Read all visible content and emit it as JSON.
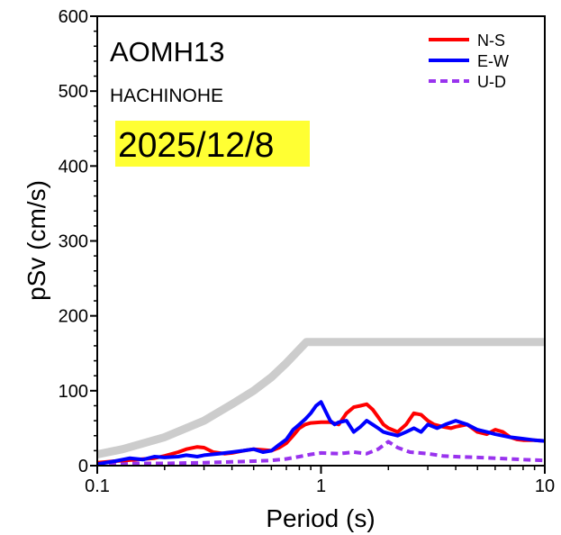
{
  "chart_data": {
    "type": "line",
    "title": "AOMH13",
    "subtitle": "HACHINOHE",
    "date": "2025/12/8",
    "xlabel": "Period (s)",
    "ylabel": "pSv (cm/s)",
    "xscale": "log",
    "xlim": [
      0.1,
      10
    ],
    "ylim": [
      0,
      600
    ],
    "xticks": [
      0.1,
      1,
      10
    ],
    "xtick_labels": [
      "0.1",
      "1",
      "10"
    ],
    "yticks": [
      0,
      100,
      200,
      300,
      400,
      500,
      600
    ],
    "ytick_labels": [
      "0",
      "100",
      "200",
      "300",
      "400",
      "500",
      "600"
    ],
    "legend_position": "top-right",
    "colors": {
      "reference": "#cccccc",
      "date_highlight": "#ffff33"
    },
    "reference_curve": {
      "color": "#cccccc",
      "points": [
        [
          0.1,
          15
        ],
        [
          0.13,
          22
        ],
        [
          0.2,
          38
        ],
        [
          0.3,
          60
        ],
        [
          0.4,
          82
        ],
        [
          0.5,
          100
        ],
        [
          0.6,
          118
        ],
        [
          0.7,
          137
        ],
        [
          0.86,
          165
        ],
        [
          10,
          165
        ]
      ]
    },
    "series": [
      {
        "name": "N-S",
        "color": "#ff0000",
        "style": "solid",
        "points": [
          [
            0.1,
            4
          ],
          [
            0.12,
            6
          ],
          [
            0.15,
            8
          ],
          [
            0.18,
            10
          ],
          [
            0.2,
            13
          ],
          [
            0.23,
            18
          ],
          [
            0.25,
            22
          ],
          [
            0.28,
            25
          ],
          [
            0.3,
            24
          ],
          [
            0.33,
            18
          ],
          [
            0.37,
            16
          ],
          [
            0.4,
            17
          ],
          [
            0.45,
            20
          ],
          [
            0.5,
            22
          ],
          [
            0.55,
            21
          ],
          [
            0.6,
            20
          ],
          [
            0.65,
            24
          ],
          [
            0.7,
            30
          ],
          [
            0.75,
            40
          ],
          [
            0.8,
            50
          ],
          [
            0.85,
            55
          ],
          [
            0.9,
            57
          ],
          [
            1.0,
            58
          ],
          [
            1.1,
            58
          ],
          [
            1.2,
            55
          ],
          [
            1.3,
            70
          ],
          [
            1.4,
            78
          ],
          [
            1.5,
            80
          ],
          [
            1.6,
            82
          ],
          [
            1.7,
            75
          ],
          [
            1.8,
            65
          ],
          [
            1.9,
            55
          ],
          [
            2.0,
            50
          ],
          [
            2.2,
            45
          ],
          [
            2.4,
            55
          ],
          [
            2.6,
            70
          ],
          [
            2.8,
            68
          ],
          [
            3.0,
            60
          ],
          [
            3.2,
            55
          ],
          [
            3.5,
            52
          ],
          [
            3.8,
            50
          ],
          [
            4.0,
            52
          ],
          [
            4.5,
            55
          ],
          [
            5.0,
            45
          ],
          [
            5.5,
            42
          ],
          [
            6.0,
            48
          ],
          [
            6.5,
            45
          ],
          [
            7.0,
            38
          ],
          [
            7.5,
            35
          ],
          [
            8.0,
            34
          ],
          [
            9.0,
            34
          ],
          [
            10,
            33
          ]
        ]
      },
      {
        "name": "E-W",
        "color": "#0000ff",
        "style": "solid",
        "points": [
          [
            0.1,
            2
          ],
          [
            0.12,
            6
          ],
          [
            0.14,
            10
          ],
          [
            0.16,
            8
          ],
          [
            0.18,
            12
          ],
          [
            0.2,
            11
          ],
          [
            0.23,
            12
          ],
          [
            0.25,
            14
          ],
          [
            0.28,
            12
          ],
          [
            0.3,
            14
          ],
          [
            0.35,
            16
          ],
          [
            0.4,
            18
          ],
          [
            0.45,
            20
          ],
          [
            0.5,
            22
          ],
          [
            0.55,
            18
          ],
          [
            0.6,
            20
          ],
          [
            0.65,
            28
          ],
          [
            0.7,
            35
          ],
          [
            0.75,
            48
          ],
          [
            0.8,
            55
          ],
          [
            0.85,
            62
          ],
          [
            0.9,
            70
          ],
          [
            0.95,
            80
          ],
          [
            1.0,
            85
          ],
          [
            1.05,
            72
          ],
          [
            1.1,
            60
          ],
          [
            1.15,
            55
          ],
          [
            1.2,
            58
          ],
          [
            1.3,
            60
          ],
          [
            1.4,
            45
          ],
          [
            1.5,
            52
          ],
          [
            1.6,
            60
          ],
          [
            1.7,
            55
          ],
          [
            1.8,
            50
          ],
          [
            1.9,
            45
          ],
          [
            2.0,
            43
          ],
          [
            2.2,
            40
          ],
          [
            2.4,
            45
          ],
          [
            2.6,
            50
          ],
          [
            2.8,
            45
          ],
          [
            3.0,
            55
          ],
          [
            3.3,
            50
          ],
          [
            3.6,
            55
          ],
          [
            4.0,
            60
          ],
          [
            4.5,
            55
          ],
          [
            5.0,
            48
          ],
          [
            5.5,
            45
          ],
          [
            6.0,
            42
          ],
          [
            7.0,
            38
          ],
          [
            8.0,
            36
          ],
          [
            9.0,
            34
          ],
          [
            10,
            33
          ]
        ]
      },
      {
        "name": "U-D",
        "color": "#9933ee",
        "style": "dashed",
        "points": [
          [
            0.1,
            2
          ],
          [
            0.15,
            3
          ],
          [
            0.2,
            3
          ],
          [
            0.3,
            4
          ],
          [
            0.4,
            5
          ],
          [
            0.5,
            6
          ],
          [
            0.6,
            7
          ],
          [
            0.7,
            9
          ],
          [
            0.8,
            12
          ],
          [
            0.9,
            15
          ],
          [
            1.0,
            17
          ],
          [
            1.2,
            16
          ],
          [
            1.4,
            18
          ],
          [
            1.6,
            16
          ],
          [
            1.8,
            22
          ],
          [
            2.0,
            32
          ],
          [
            2.2,
            24
          ],
          [
            2.5,
            18
          ],
          [
            3.0,
            16
          ],
          [
            3.5,
            13
          ],
          [
            4.0,
            12
          ],
          [
            5.0,
            11
          ],
          [
            6.0,
            10
          ],
          [
            7.0,
            9
          ],
          [
            8.0,
            8
          ],
          [
            10,
            7
          ]
        ]
      }
    ]
  }
}
